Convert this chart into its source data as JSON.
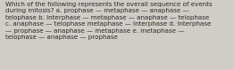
{
  "lines": [
    "Which of the following represents the overall sequence of events",
    "during mitosis? a. prophase — metaphase — anaphase —",
    "telophase b. interphase — metaphase — anaphase — telophase",
    "c. anaphase — telophase metaphase — interphase d. interphase",
    "— prophase — anaphase — metaphase e. metaphase —",
    "telophase — anaphase — prophase"
  ],
  "background_color": "#d0ccc6",
  "text_color": "#2b2b2b",
  "font_size": 5.15,
  "figwidth": 2.62,
  "figheight": 0.79,
  "dpi": 100
}
